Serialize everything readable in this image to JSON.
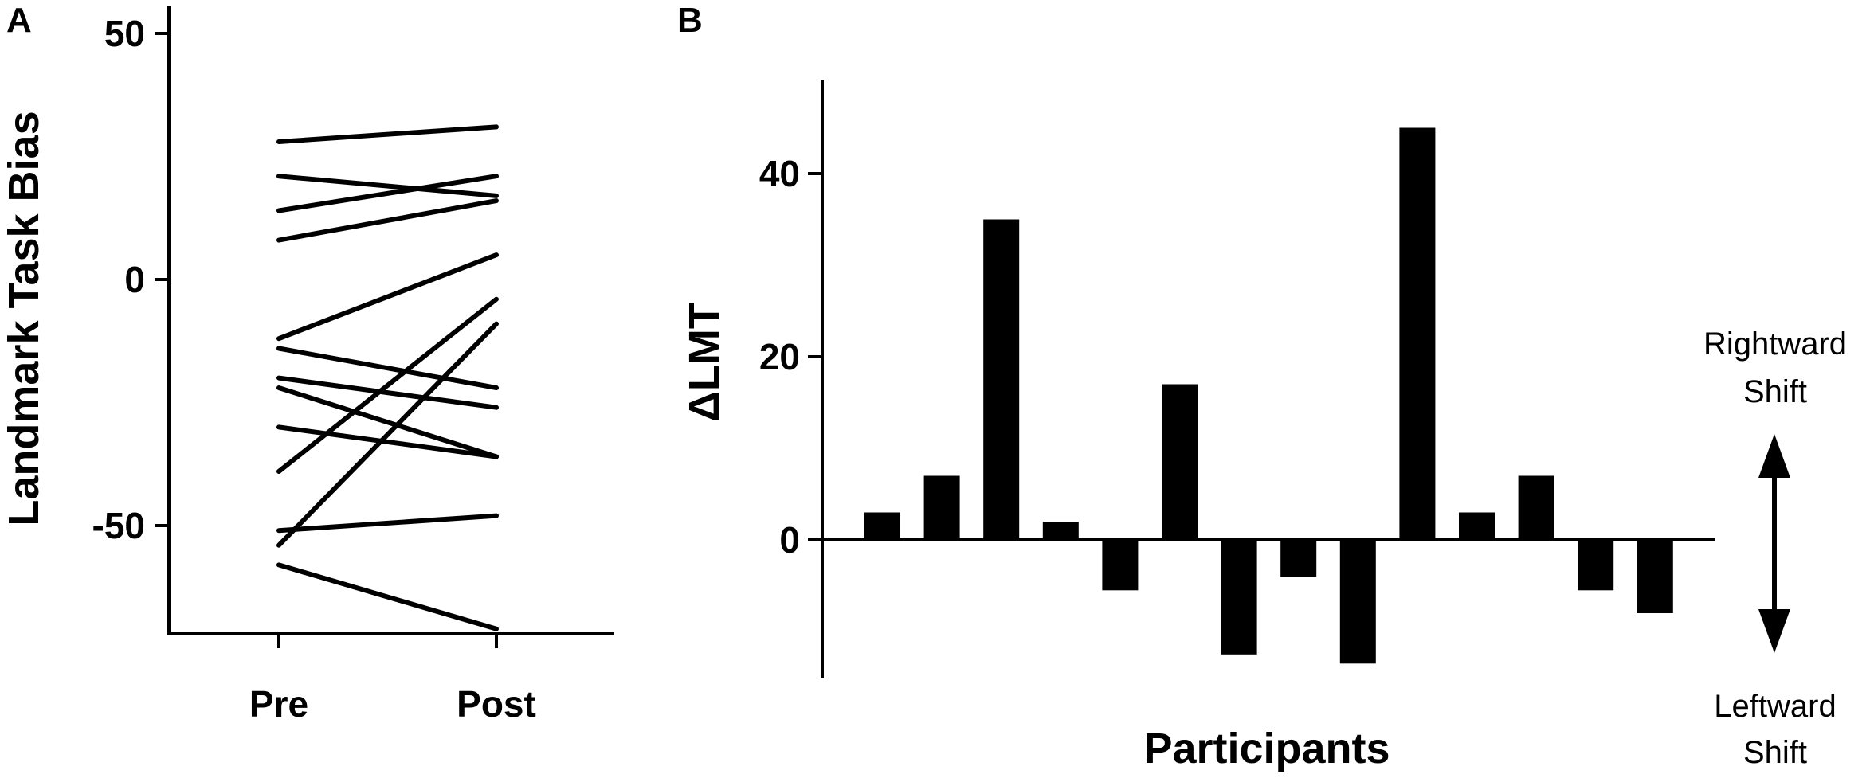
{
  "chart_data": [
    {
      "panel_label": "A",
      "type": "line",
      "categories": [
        "Pre",
        "Post"
      ],
      "ylabel": "Landmark Task Bias",
      "xlabel": "",
      "ylim": [
        -72,
        55
      ],
      "yticks": [
        50,
        0,
        -50
      ],
      "series": [
        {
          "values": [
            28,
            31
          ]
        },
        {
          "values": [
            21,
            17
          ]
        },
        {
          "values": [
            14,
            21
          ]
        },
        {
          "values": [
            8,
            16
          ]
        },
        {
          "values": [
            -12,
            5
          ]
        },
        {
          "values": [
            -14,
            -22
          ]
        },
        {
          "values": [
            -20,
            -26
          ]
        },
        {
          "values": [
            -22,
            -36
          ]
        },
        {
          "values": [
            -30,
            -36
          ]
        },
        {
          "values": [
            -39,
            -4
          ]
        },
        {
          "values": [
            -51,
            -48
          ]
        },
        {
          "values": [
            -54,
            -9
          ]
        },
        {
          "values": [
            -58,
            -71
          ]
        }
      ],
      "grid": false,
      "legend": "none"
    },
    {
      "panel_label": "B",
      "type": "bar",
      "xlabel": "Participants",
      "ylabel": "ΔLMT",
      "ylim": [
        -15,
        50
      ],
      "yticks": [
        0,
        20,
        40
      ],
      "values": [
        3,
        7,
        35,
        2,
        -5.5,
        17,
        -12.5,
        -4,
        -13.5,
        45,
        3,
        7,
        -5.5,
        -8
      ],
      "grid": false,
      "legend": "none",
      "annotations": {
        "up_label": [
          "Rightward",
          "Shift"
        ],
        "down_label": [
          "Leftward",
          "Shift"
        ]
      }
    }
  ]
}
